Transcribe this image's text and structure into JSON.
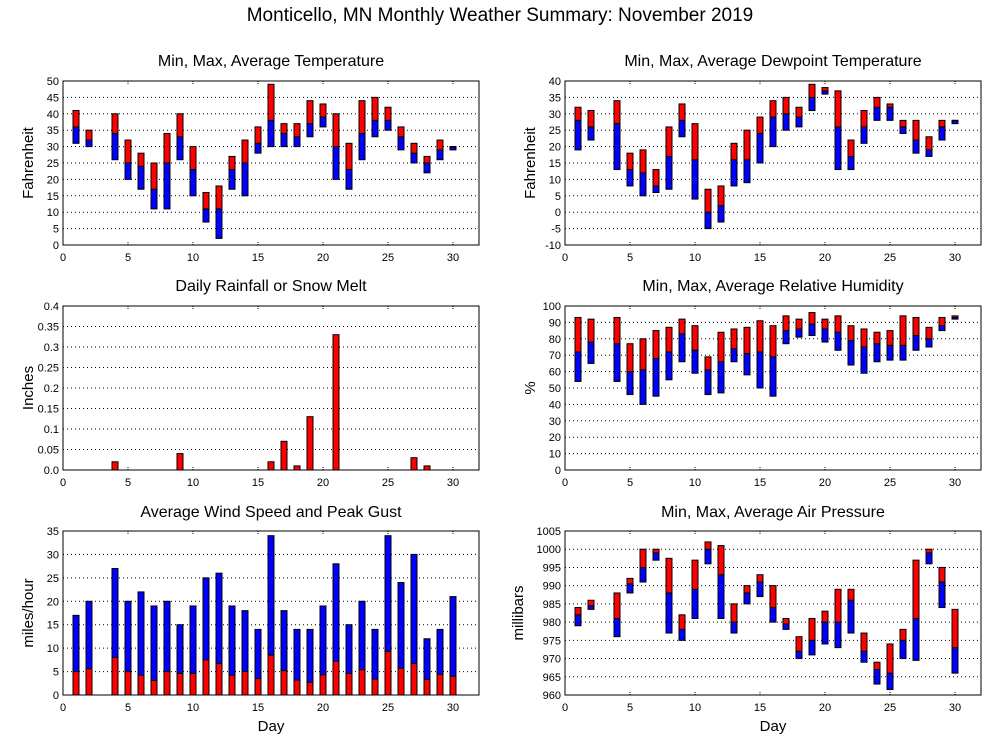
{
  "page_title": "Monticello, MN Monthly Weather Summary: November 2019",
  "colors": {
    "upper": "#ff0000",
    "lower": "#0000ff",
    "outline": "#000000",
    "grid": "#000000"
  },
  "chart_data": [
    {
      "id": "temperature",
      "type": "bar",
      "subtype": "floating-range (min-avg blue, avg-max red)",
      "title": "Min, Max, Average Temperature",
      "xlabel": "",
      "ylabel": "Fahrenheit",
      "xlim": [
        0,
        32
      ],
      "ylim": [
        0,
        50
      ],
      "yticks": [
        0,
        5,
        10,
        15,
        20,
        25,
        30,
        35,
        40,
        45,
        50
      ],
      "xticks": [
        0,
        5,
        10,
        15,
        20,
        25,
        30
      ],
      "grid": true,
      "days": [
        1,
        2,
        4,
        5,
        6,
        7,
        8,
        9,
        10,
        11,
        12,
        13,
        14,
        15,
        16,
        17,
        18,
        19,
        20,
        21,
        22,
        23,
        24,
        25,
        26,
        27,
        28,
        29,
        30
      ],
      "min": [
        31,
        30,
        26,
        20,
        17,
        11,
        11,
        26,
        15,
        7,
        2,
        17,
        15,
        28,
        30,
        30,
        30,
        33,
        36,
        20,
        17,
        26,
        33,
        35,
        29,
        25,
        22,
        26,
        29
      ],
      "avg": [
        36,
        32,
        34,
        25,
        24,
        17,
        25,
        33,
        23,
        11,
        11,
        23,
        25,
        31,
        38,
        34,
        33,
        37,
        39,
        30,
        23,
        34,
        38,
        38,
        33,
        28,
        25,
        29,
        30
      ],
      "max": [
        41,
        35,
        40,
        32,
        28,
        25,
        34,
        40,
        30,
        16,
        18,
        27,
        32,
        36,
        49,
        37,
        37,
        44,
        43,
        40,
        31,
        44,
        45,
        42,
        36,
        31,
        27,
        32,
        30
      ]
    },
    {
      "id": "dewpoint",
      "type": "bar",
      "subtype": "floating-range (min-avg blue, avg-max red)",
      "title": "Min, Max, Average Dewpoint Temperature",
      "xlabel": "",
      "ylabel": "Fahrenheit",
      "xlim": [
        0,
        32
      ],
      "ylim": [
        -10,
        40
      ],
      "yticks": [
        -10,
        -5,
        0,
        5,
        10,
        15,
        20,
        25,
        30,
        35,
        40
      ],
      "xticks": [
        0,
        5,
        10,
        15,
        20,
        25,
        30
      ],
      "grid": true,
      "days": [
        1,
        2,
        4,
        5,
        6,
        7,
        8,
        9,
        10,
        11,
        12,
        13,
        14,
        15,
        16,
        17,
        18,
        19,
        20,
        21,
        22,
        23,
        24,
        25,
        26,
        27,
        28,
        29,
        30
      ],
      "min": [
        19,
        22,
        13,
        8,
        5,
        6,
        7,
        23,
        4,
        -5,
        -3,
        8,
        9,
        15,
        20,
        25,
        26,
        31,
        36,
        13,
        13,
        21,
        28,
        28,
        24,
        18,
        17,
        22,
        27
      ],
      "avg": [
        28,
        26,
        27,
        13,
        12,
        8,
        17,
        28,
        16,
        0,
        2,
        16,
        16,
        24,
        29,
        30,
        29,
        35,
        37,
        26,
        17,
        26,
        32,
        32,
        26,
        22,
        19,
        26,
        28
      ],
      "max": [
        32,
        31,
        34,
        18,
        19,
        13,
        26,
        33,
        27,
        7,
        8,
        21,
        25,
        29,
        34,
        35,
        32,
        39,
        38,
        37,
        22,
        31,
        35,
        33,
        28,
        28,
        23,
        28,
        28
      ]
    },
    {
      "id": "rainfall",
      "type": "bar",
      "title": "Daily Rainfall or Snow Melt",
      "xlabel": "",
      "ylabel": "Inches",
      "xlim": [
        0,
        32
      ],
      "ylim": [
        0,
        0.4
      ],
      "yticks": [
        "0.0",
        "0.05",
        "0.1",
        "0.15",
        "0.2",
        "0.25",
        "0.3",
        "0.35",
        "0.4"
      ],
      "xticks": [
        0,
        5,
        10,
        15,
        20,
        25,
        30
      ],
      "grid": true,
      "days": [
        4,
        9,
        16,
        17,
        18,
        19,
        21,
        27,
        28
      ],
      "values": [
        0.02,
        0.04,
        0.02,
        0.07,
        0.01,
        0.13,
        0.33,
        0.03,
        0.01
      ]
    },
    {
      "id": "humidity",
      "type": "bar",
      "subtype": "floating-range (min-avg blue, avg-max red)",
      "title": "Min, Max, Average Relative Humidity",
      "xlabel": "",
      "ylabel": "%",
      "xlim": [
        0,
        32
      ],
      "ylim": [
        0,
        100
      ],
      "yticks": [
        0,
        10,
        20,
        30,
        40,
        50,
        60,
        70,
        80,
        90,
        100
      ],
      "xticks": [
        0,
        5,
        10,
        15,
        20,
        25,
        30
      ],
      "grid": true,
      "days": [
        1,
        2,
        4,
        5,
        6,
        7,
        8,
        9,
        10,
        11,
        12,
        13,
        14,
        15,
        16,
        17,
        18,
        19,
        20,
        21,
        22,
        23,
        24,
        25,
        26,
        27,
        28,
        29,
        30
      ],
      "min": [
        54,
        65,
        54,
        46,
        40,
        45,
        55,
        66,
        59,
        46,
        47,
        66,
        58,
        50,
        45,
        77,
        81,
        82,
        78,
        73,
        64,
        59,
        66,
        67,
        67,
        73,
        75,
        85,
        92
      ],
      "avg": [
        72,
        78,
        77,
        60,
        61,
        68,
        72,
        83,
        73,
        61,
        66,
        74,
        71,
        72,
        69,
        85,
        86,
        89,
        86,
        84,
        79,
        75,
        77,
        76,
        76,
        82,
        80,
        88,
        93
      ],
      "max": [
        93,
        92,
        93,
        77,
        80,
        85,
        87,
        92,
        88,
        69,
        84,
        86,
        87,
        91,
        88,
        94,
        92,
        96,
        92,
        94,
        88,
        86,
        84,
        85,
        94,
        93,
        87,
        93,
        94
      ]
    },
    {
      "id": "wind",
      "type": "bar",
      "subtype": "stacked (average red, peak gust blue)",
      "title": "Average Wind Speed and Peak Gust",
      "xlabel": "Day",
      "ylabel": "miles/hour",
      "xlim": [
        0,
        32
      ],
      "ylim": [
        0,
        35
      ],
      "yticks": [
        0,
        5,
        10,
        15,
        20,
        25,
        30,
        35
      ],
      "xticks": [
        0,
        5,
        10,
        15,
        20,
        25,
        30
      ],
      "grid": true,
      "days": [
        1,
        2,
        4,
        5,
        6,
        7,
        8,
        9,
        10,
        11,
        12,
        13,
        14,
        15,
        16,
        17,
        18,
        19,
        20,
        21,
        22,
        23,
        24,
        25,
        26,
        27,
        28,
        29,
        30
      ],
      "average": [
        5,
        5.6,
        8,
        5,
        4.2,
        3.1,
        5,
        4.6,
        4.6,
        7.5,
        6.7,
        4.2,
        5,
        3.5,
        8.5,
        5.2,
        3.2,
        2.7,
        4.3,
        7.2,
        4.6,
        5.4,
        3.4,
        9.3,
        5.7,
        6.7,
        3.3,
        4.4,
        4
      ],
      "peak_gust": [
        17,
        20,
        27,
        20,
        22,
        19,
        20,
        15,
        19,
        25,
        26,
        19,
        18,
        14,
        34,
        18,
        14,
        14,
        19,
        28,
        15,
        20,
        14,
        34,
        24,
        30,
        12,
        14,
        21
      ]
    },
    {
      "id": "pressure",
      "type": "bar",
      "subtype": "floating-range (min-avg blue, avg-max red)",
      "title": "Min, Max, Average Air Pressure",
      "xlabel": "Day",
      "ylabel": "millibars",
      "xlim": [
        0,
        32
      ],
      "ylim": [
        960,
        1005
      ],
      "yticks": [
        960,
        965,
        970,
        975,
        980,
        985,
        990,
        995,
        1000,
        1005
      ],
      "xticks": [
        0,
        5,
        10,
        15,
        20,
        25,
        30
      ],
      "grid": true,
      "days": [
        1,
        2,
        4,
        5,
        6,
        7,
        8,
        9,
        10,
        11,
        12,
        13,
        14,
        15,
        16,
        17,
        18,
        19,
        20,
        21,
        22,
        23,
        24,
        25,
        26,
        27,
        28,
        29,
        30
      ],
      "min": [
        979,
        983.5,
        976,
        988,
        991,
        997,
        977,
        975,
        981,
        996,
        981,
        977,
        985,
        987,
        980,
        978,
        970,
        971,
        974,
        973,
        977,
        969,
        963,
        961.5,
        970,
        969.5,
        996,
        984,
        966
      ],
      "avg": [
        982,
        984.5,
        981,
        990.5,
        995,
        999,
        988,
        978,
        989,
        1000,
        993,
        980,
        988,
        991,
        984,
        979.5,
        972,
        975,
        980,
        980,
        986,
        972,
        967,
        966,
        975,
        981,
        999,
        991,
        973
      ],
      "max": [
        984,
        986,
        988,
        992,
        1000,
        1000,
        997.5,
        982,
        997,
        1002,
        1001,
        985,
        990,
        993,
        990,
        981,
        976,
        981,
        983,
        989,
        989,
        977,
        969,
        974,
        978,
        997,
        1000,
        995,
        983.5
      ]
    }
  ]
}
